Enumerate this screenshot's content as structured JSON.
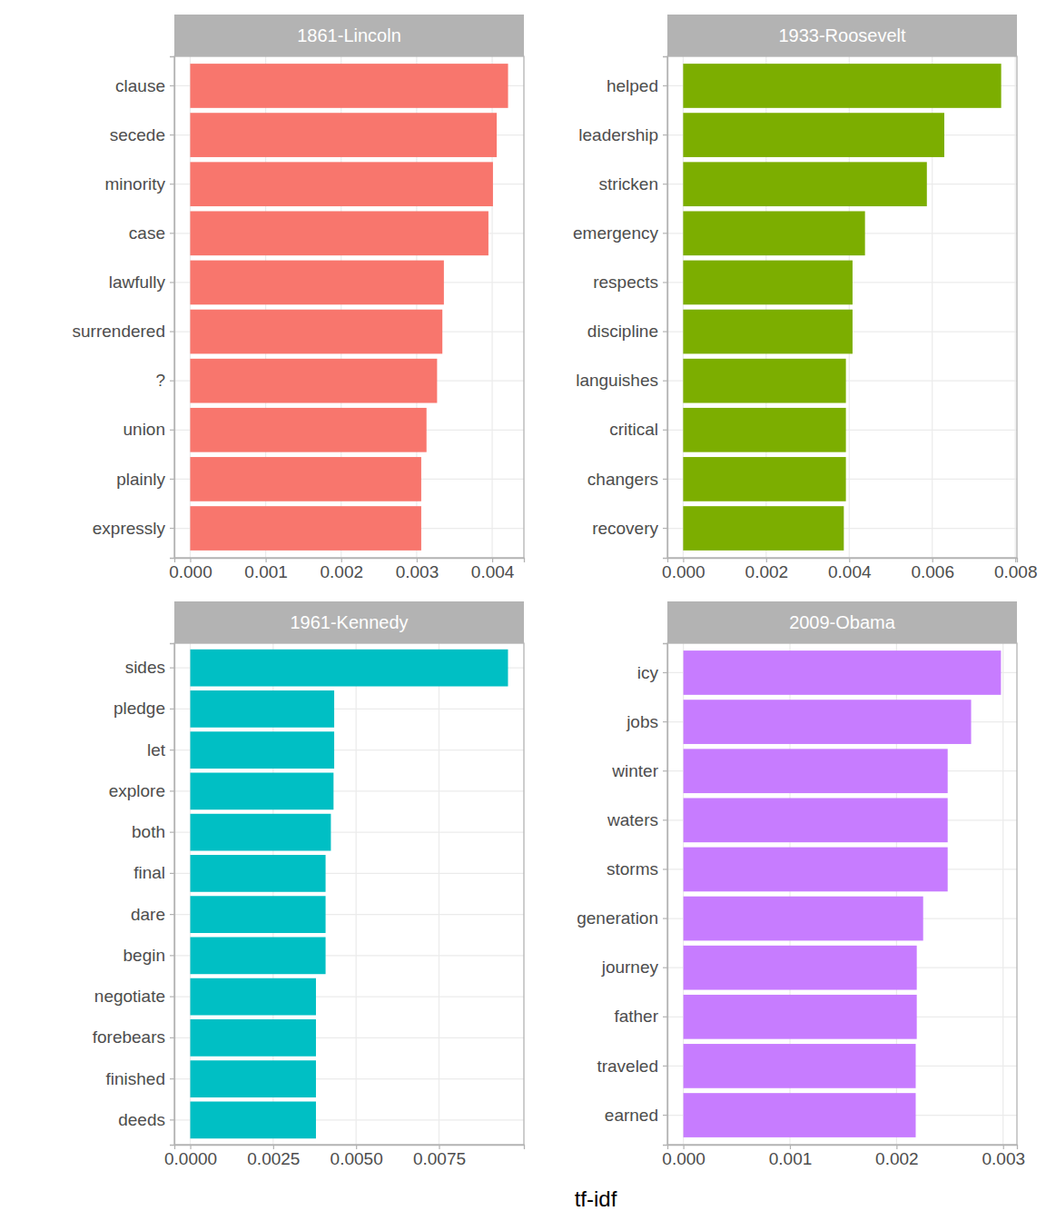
{
  "chart_data": {
    "type": "bar",
    "orientation": "horizontal",
    "grid": true,
    "xlabel": "tf-idf",
    "panels": [
      {
        "title": "1861-Lincoln",
        "color": "#F8766D",
        "categories": [
          "clause",
          "secede",
          "minority",
          "case",
          "lawfully",
          "surrendered",
          "?",
          "union",
          "plainly",
          "expressly"
        ],
        "values": [
          0.00421,
          0.00406,
          0.00401,
          0.00395,
          0.00336,
          0.00334,
          0.00327,
          0.00313,
          0.00306,
          0.00306
        ],
        "xlim": [
          -0.00021,
          0.00442
        ],
        "xticks": [
          {
            "value": 0,
            "label": "0.000"
          },
          {
            "value": 0.001,
            "label": "0.001"
          },
          {
            "value": 0.002,
            "label": "0.002"
          },
          {
            "value": 0.003,
            "label": "0.003"
          },
          {
            "value": 0.004,
            "label": "0.004"
          }
        ]
      },
      {
        "title": "1933-Roosevelt",
        "color": "#7CAE00",
        "categories": [
          "helped",
          "leadership",
          "stricken",
          "emergency",
          "respects",
          "discipline",
          "languishes",
          "critical",
          "changers",
          "recovery"
        ],
        "values": [
          0.00766,
          0.00629,
          0.00587,
          0.00438,
          0.00408,
          0.00408,
          0.00392,
          0.00392,
          0.00392,
          0.00387
        ],
        "xlim": [
          -0.00038,
          0.00804
        ],
        "xticks": [
          {
            "value": 0,
            "label": "0.000"
          },
          {
            "value": 0.002,
            "label": "0.002"
          },
          {
            "value": 0.004,
            "label": "0.004"
          },
          {
            "value": 0.006,
            "label": "0.006"
          },
          {
            "value": 0.008,
            "label": "0.008"
          }
        ]
      },
      {
        "title": "1961-Kennedy",
        "color": "#00BFC4",
        "categories": [
          "sides",
          "pledge",
          "let",
          "explore",
          "both",
          "final",
          "dare",
          "begin",
          "negotiate",
          "forebears",
          "finished",
          "deeds"
        ],
        "values": [
          0.00958,
          0.00434,
          0.00434,
          0.00432,
          0.00424,
          0.00408,
          0.00408,
          0.00408,
          0.00379,
          0.00379,
          0.00379,
          0.00379
        ],
        "xlim": [
          -0.00048,
          0.01006
        ],
        "xticks": [
          {
            "value": 0,
            "label": "0.0000"
          },
          {
            "value": 0.0025,
            "label": "0.0025"
          },
          {
            "value": 0.005,
            "label": "0.0050"
          },
          {
            "value": 0.0075,
            "label": "0.0075"
          }
        ]
      },
      {
        "title": "2009-Obama",
        "color": "#C77CFF",
        "categories": [
          "icy",
          "jobs",
          "winter",
          "waters",
          "storms",
          "generation",
          "journey",
          "father",
          "traveled",
          "earned"
        ],
        "values": [
          0.00298,
          0.0027,
          0.00248,
          0.00248,
          0.00248,
          0.00225,
          0.00219,
          0.00219,
          0.00218,
          0.00218
        ],
        "xlim": [
          -0.00015,
          0.00313
        ],
        "xticks": [
          {
            "value": 0,
            "label": "0.000"
          },
          {
            "value": 0.001,
            "label": "0.001"
          },
          {
            "value": 0.002,
            "label": "0.002"
          },
          {
            "value": 0.003,
            "label": "0.003"
          }
        ]
      }
    ]
  }
}
